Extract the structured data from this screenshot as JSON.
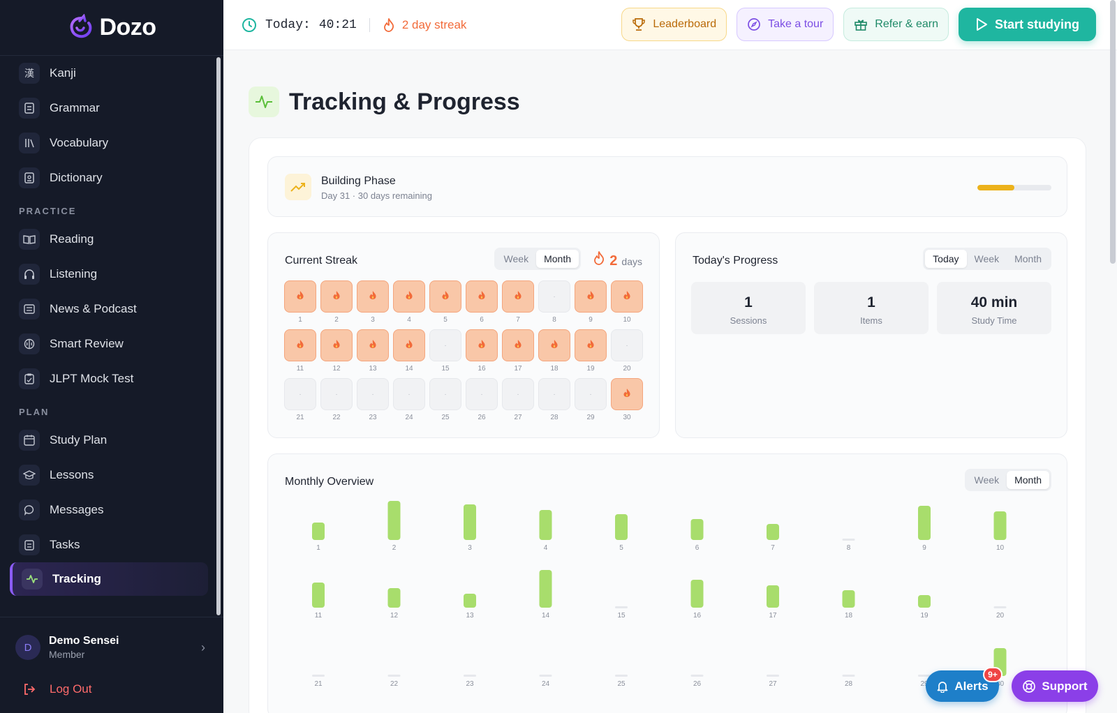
{
  "app": {
    "name": "Dozo"
  },
  "sidebar": {
    "items_top": [
      {
        "label": "Kanji",
        "icon": "kanji-icon",
        "glyph": "漢"
      },
      {
        "label": "Grammar",
        "icon": "document-icon",
        "glyph": "▤"
      },
      {
        "label": "Vocabulary",
        "icon": "library-icon",
        "glyph": "|||"
      },
      {
        "label": "Dictionary",
        "icon": "book-icon",
        "glyph": "▣"
      }
    ],
    "practice_label": "PRACTICE",
    "items_practice": [
      {
        "label": "Reading",
        "icon": "open-book-icon",
        "glyph": "◫"
      },
      {
        "label": "Listening",
        "icon": "headphones-icon",
        "glyph": "∩"
      },
      {
        "label": "News & Podcast",
        "icon": "newspaper-icon",
        "glyph": "▦"
      },
      {
        "label": "Smart Review",
        "icon": "brain-icon",
        "glyph": "❂"
      },
      {
        "label": "JLPT Mock Test",
        "icon": "clipboard-icon",
        "glyph": "▥"
      }
    ],
    "plan_label": "PLAN",
    "items_plan": [
      {
        "label": "Study Plan",
        "icon": "calendar-icon",
        "glyph": "▦"
      },
      {
        "label": "Lessons",
        "icon": "graduation-cap-icon",
        "glyph": "◈"
      },
      {
        "label": "Messages",
        "icon": "chat-bubble-icon",
        "glyph": "◯"
      },
      {
        "label": "Tasks",
        "icon": "checklist-icon",
        "glyph": "☰"
      },
      {
        "label": "Tracking",
        "icon": "activity-icon",
        "glyph": "∿",
        "active": true
      }
    ],
    "user": {
      "initial": "D",
      "name": "Demo Sensei",
      "role": "Member"
    },
    "logout_label": "Log Out"
  },
  "topbar": {
    "timer_label": "Today:",
    "timer_value": "40:21",
    "streak_text": "2 day streak",
    "buttons": {
      "leaderboard": "Leaderboard",
      "tour": "Take a tour",
      "refer": "Refer & earn",
      "start": "Start studying"
    }
  },
  "page": {
    "title": "Tracking & Progress"
  },
  "phase": {
    "title": "Building Phase",
    "subtitle": "Day 31 · 30 days remaining",
    "progress_fraction": 0.5
  },
  "streak_card": {
    "title": "Current Streak",
    "tabs": [
      "Week",
      "Month"
    ],
    "active_tab": "Month",
    "count": "2",
    "unit": "days",
    "days": [
      {
        "n": "1",
        "on": true
      },
      {
        "n": "2",
        "on": true
      },
      {
        "n": "3",
        "on": true
      },
      {
        "n": "4",
        "on": true
      },
      {
        "n": "5",
        "on": true
      },
      {
        "n": "6",
        "on": true
      },
      {
        "n": "7",
        "on": true
      },
      {
        "n": "8",
        "on": false
      },
      {
        "n": "9",
        "on": true
      },
      {
        "n": "10",
        "on": true
      },
      {
        "n": "11",
        "on": true
      },
      {
        "n": "12",
        "on": true
      },
      {
        "n": "13",
        "on": true
      },
      {
        "n": "14",
        "on": true
      },
      {
        "n": "15",
        "on": false
      },
      {
        "n": "16",
        "on": true
      },
      {
        "n": "17",
        "on": true
      },
      {
        "n": "18",
        "on": true
      },
      {
        "n": "19",
        "on": true
      },
      {
        "n": "20",
        "on": false
      },
      {
        "n": "21",
        "on": false
      },
      {
        "n": "22",
        "on": false
      },
      {
        "n": "23",
        "on": false
      },
      {
        "n": "24",
        "on": false
      },
      {
        "n": "25",
        "on": false
      },
      {
        "n": "26",
        "on": false
      },
      {
        "n": "27",
        "on": false
      },
      {
        "n": "28",
        "on": false
      },
      {
        "n": "29",
        "on": false
      },
      {
        "n": "30",
        "on": true
      }
    ]
  },
  "progress_card": {
    "title": "Today's Progress",
    "tabs": [
      "Today",
      "Week",
      "Month"
    ],
    "active_tab": "Today",
    "stats": [
      {
        "value": "1",
        "label": "Sessions"
      },
      {
        "value": "1",
        "label": "Items"
      },
      {
        "value": "40 min",
        "label": "Study Time"
      }
    ]
  },
  "monthly": {
    "title": "Monthly Overview",
    "tabs": [
      "Week",
      "Month"
    ],
    "active_tab": "Month"
  },
  "chart_data": {
    "type": "bar",
    "categories": [
      "1",
      "2",
      "3",
      "4",
      "5",
      "6",
      "7",
      "8",
      "9",
      "10",
      "11",
      "12",
      "13",
      "14",
      "15",
      "16",
      "17",
      "18",
      "19",
      "20",
      "21",
      "22",
      "23",
      "24",
      "25",
      "26",
      "27",
      "28",
      "29",
      "30"
    ],
    "values": [
      25,
      56,
      51,
      43,
      37,
      30,
      23,
      0,
      49,
      41,
      36,
      28,
      20,
      54,
      0,
      40,
      32,
      25,
      18,
      0,
      0,
      0,
      0,
      0,
      0,
      0,
      0,
      0,
      0,
      40
    ],
    "color": "#a8dd6c"
  },
  "floating": {
    "alerts_label": "Alerts",
    "alerts_badge": "9+",
    "support_label": "Support"
  },
  "colors": {
    "sidebar_bg": "#151a28",
    "accent_teal": "#1fb6a0",
    "streak_orange": "#f26b3a",
    "bar_green": "#a8dd6c",
    "purple": "#8b3fe8"
  }
}
